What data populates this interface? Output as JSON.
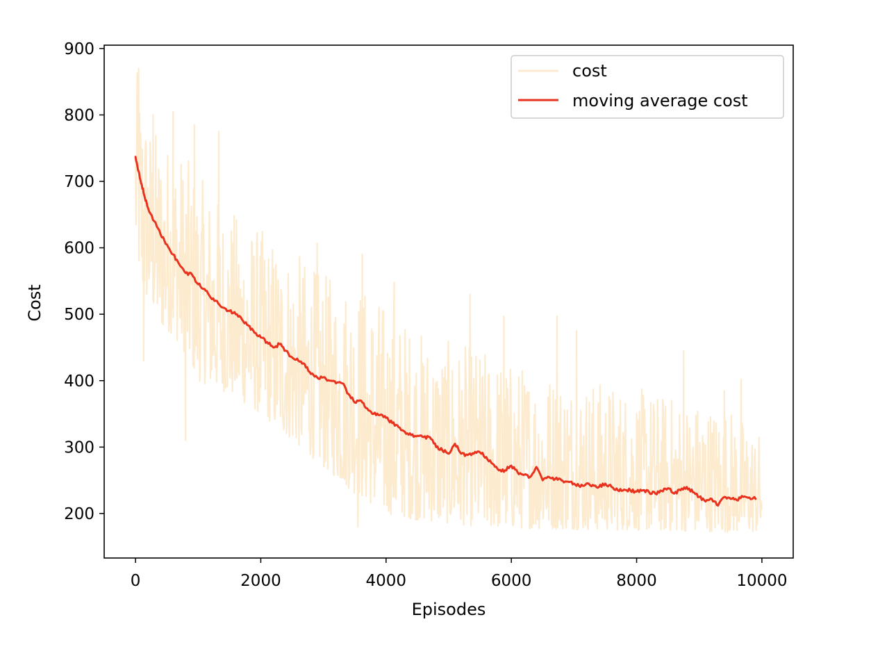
{
  "chart_data": {
    "type": "line",
    "title": "",
    "xlabel": "Episodes",
    "ylabel": "Cost",
    "xlim": [
      -500,
      10500
    ],
    "ylim": [
      133,
      905
    ],
    "xticks": [
      0,
      2000,
      4000,
      6000,
      8000,
      10000
    ],
    "xtick_labels": [
      "0",
      "2000",
      "4000",
      "6000",
      "8000",
      "10000"
    ],
    "yticks": [
      200,
      300,
      400,
      500,
      600,
      700,
      800,
      900
    ],
    "ytick_labels": [
      "200",
      "300",
      "400",
      "500",
      "600",
      "700",
      "800",
      "900"
    ],
    "grid": false,
    "legend": {
      "placement": "upper right"
    },
    "series": [
      {
        "name": "cost",
        "color": "#fdebd0",
        "style": "noisy band",
        "envelope_x": [
          0,
          100,
          200,
          400,
          600,
          800,
          1000,
          1500,
          2000,
          2500,
          3000,
          3500,
          4000,
          4500,
          5000,
          5500,
          6000,
          6500,
          7000,
          7500,
          8000,
          8500,
          9000,
          9500,
          10000
        ],
        "envelope_upper": [
          870,
          850,
          800,
          770,
          760,
          740,
          710,
          660,
          630,
          600,
          560,
          560,
          520,
          480,
          460,
          450,
          430,
          420,
          410,
          400,
          390,
          380,
          370,
          360,
          320
        ],
        "envelope_lower": [
          600,
          530,
          520,
          480,
          470,
          440,
          400,
          380,
          350,
          310,
          270,
          230,
          200,
          190,
          185,
          180,
          178,
          177,
          176,
          175,
          175,
          174,
          173,
          172,
          172
        ],
        "spikes": [
          [
            50,
            870
          ],
          [
            130,
            430
          ],
          [
            280,
            800
          ],
          [
            600,
            805
          ],
          [
            800,
            310
          ],
          [
            940,
            785
          ],
          [
            1330,
            775
          ],
          [
            2900,
            607
          ],
          [
            3550,
            180
          ],
          [
            3620,
            590
          ],
          [
            4130,
            548
          ],
          [
            5340,
            530
          ],
          [
            5880,
            497
          ],
          [
            6730,
            497
          ],
          [
            7040,
            475
          ],
          [
            8750,
            445
          ],
          [
            9670,
            402
          ],
          [
            9400,
            385
          ]
        ]
      },
      {
        "name": "moving average cost",
        "color": "#e8321e",
        "x": [
          0,
          50,
          100,
          150,
          200,
          300,
          400,
          500,
          600,
          700,
          800,
          900,
          1000,
          1100,
          1200,
          1300,
          1400,
          1500,
          1600,
          1700,
          1800,
          1900,
          2000,
          2100,
          2200,
          2300,
          2400,
          2500,
          2600,
          2700,
          2800,
          2900,
          3000,
          3100,
          3200,
          3300,
          3400,
          3500,
          3600,
          3700,
          3800,
          3900,
          4000,
          4100,
          4200,
          4300,
          4400,
          4500,
          4600,
          4700,
          4800,
          4900,
          5000,
          5100,
          5200,
          5300,
          5400,
          5500,
          5600,
          5700,
          5800,
          5900,
          6000,
          6100,
          6200,
          6300,
          6400,
          6500,
          6600,
          6700,
          6800,
          6900,
          7000,
          7100,
          7200,
          7300,
          7400,
          7500,
          7600,
          7700,
          7800,
          7900,
          8000,
          8100,
          8200,
          8300,
          8400,
          8500,
          8600,
          8700,
          8800,
          8900,
          9000,
          9100,
          9200,
          9300,
          9400,
          9500,
          9600,
          9700,
          9800,
          9900
        ],
        "values": [
          737,
          715,
          695,
          675,
          660,
          640,
          620,
          605,
          590,
          575,
          562,
          560,
          545,
          538,
          525,
          520,
          510,
          505,
          500,
          492,
          483,
          472,
          465,
          458,
          450,
          455,
          445,
          435,
          430,
          425,
          410,
          405,
          405,
          400,
          396,
          396,
          380,
          367,
          370,
          358,
          350,
          348,
          344,
          336,
          330,
          323,
          318,
          317,
          315,
          315,
          300,
          295,
          290,
          305,
          290,
          288,
          290,
          292,
          285,
          275,
          265,
          265,
          272,
          262,
          258,
          255,
          270,
          250,
          255,
          252,
          250,
          248,
          245,
          240,
          245,
          243,
          240,
          245,
          240,
          235,
          236,
          235,
          233,
          235,
          232,
          230,
          234,
          238,
          230,
          235,
          240,
          232,
          225,
          218,
          222,
          212,
          225,
          222,
          220,
          225,
          224,
          222
        ]
      }
    ]
  }
}
